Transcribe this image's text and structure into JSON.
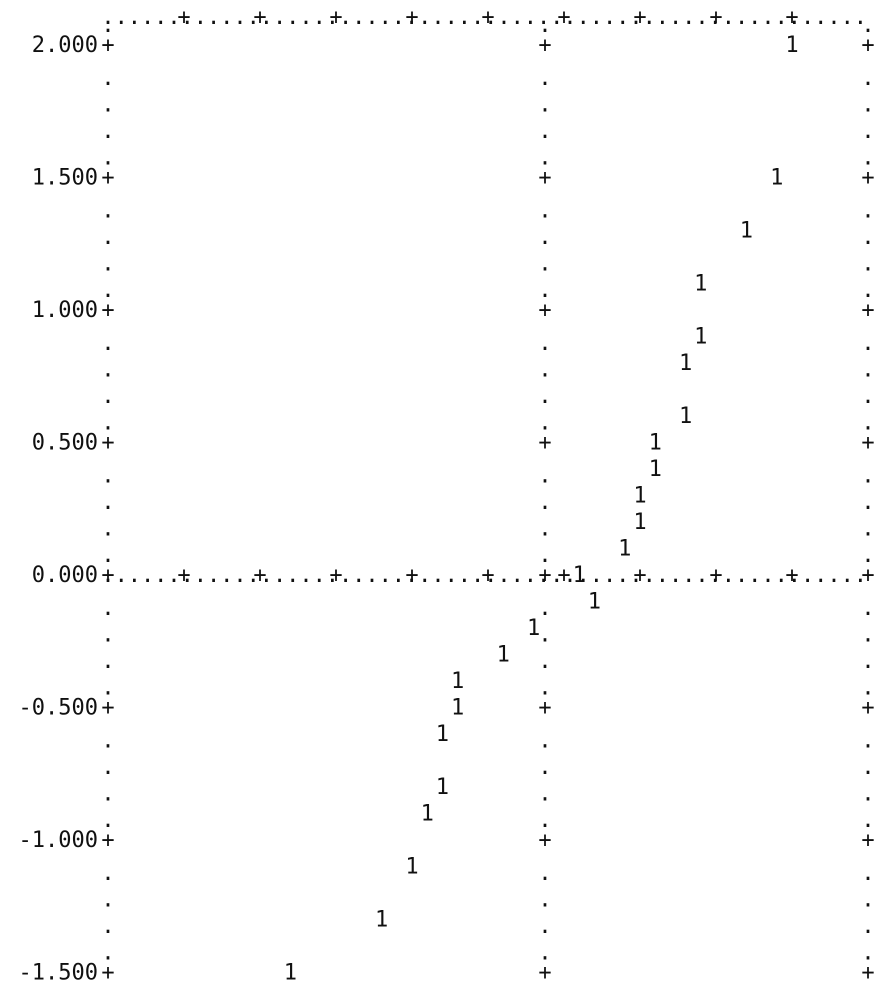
{
  "chart_data": {
    "type": "scatter",
    "style": "ascii",
    "title": "",
    "xlabel": "",
    "ylabel": "",
    "ylim": [
      -1.6,
      2.1
    ],
    "xlim": [
      0,
      10
    ],
    "xaxis_at_y": 0.0,
    "y_ticks": [
      2.0,
      1.5,
      1.0,
      0.5,
      0.0,
      -0.5,
      -1.0,
      -1.5
    ],
    "y_tick_labels": [
      "2.000",
      "1.500",
      "1.000",
      "0.500",
      "0.000",
      "-0.500",
      "-1.000",
      "-1.500"
    ],
    "x_ticks": [
      1,
      2,
      3,
      4,
      5,
      6,
      7,
      8,
      9
    ],
    "vertical_lines_at_x": [
      5.75
    ],
    "series": [
      {
        "marker": "1",
        "points": [
          {
            "x": 9.0,
            "y": 2.0
          },
          {
            "x": 8.8,
            "y": 1.5
          },
          {
            "x": 8.4,
            "y": 1.3
          },
          {
            "x": 7.8,
            "y": 1.1
          },
          {
            "x": 7.8,
            "y": 0.9
          },
          {
            "x": 7.6,
            "y": 0.8
          },
          {
            "x": 7.6,
            "y": 0.6
          },
          {
            "x": 7.2,
            "y": 0.5
          },
          {
            "x": 7.2,
            "y": 0.4
          },
          {
            "x": 7.0,
            "y": 0.3
          },
          {
            "x": 7.0,
            "y": 0.2
          },
          {
            "x": 6.8,
            "y": 0.1
          },
          {
            "x": 6.2,
            "y": 0.0
          },
          {
            "x": 6.4,
            "y": -0.1
          },
          {
            "x": 5.6,
            "y": -0.2
          },
          {
            "x": 5.2,
            "y": -0.3
          },
          {
            "x": 4.6,
            "y": -0.4
          },
          {
            "x": 4.6,
            "y": -0.5
          },
          {
            "x": 4.4,
            "y": -0.6
          },
          {
            "x": 4.4,
            "y": -0.8
          },
          {
            "x": 4.2,
            "y": -0.9
          },
          {
            "x": 4.0,
            "y": -1.1
          },
          {
            "x": 3.6,
            "y": -1.3
          },
          {
            "x": 2.4,
            "y": -1.5
          }
        ]
      }
    ]
  }
}
